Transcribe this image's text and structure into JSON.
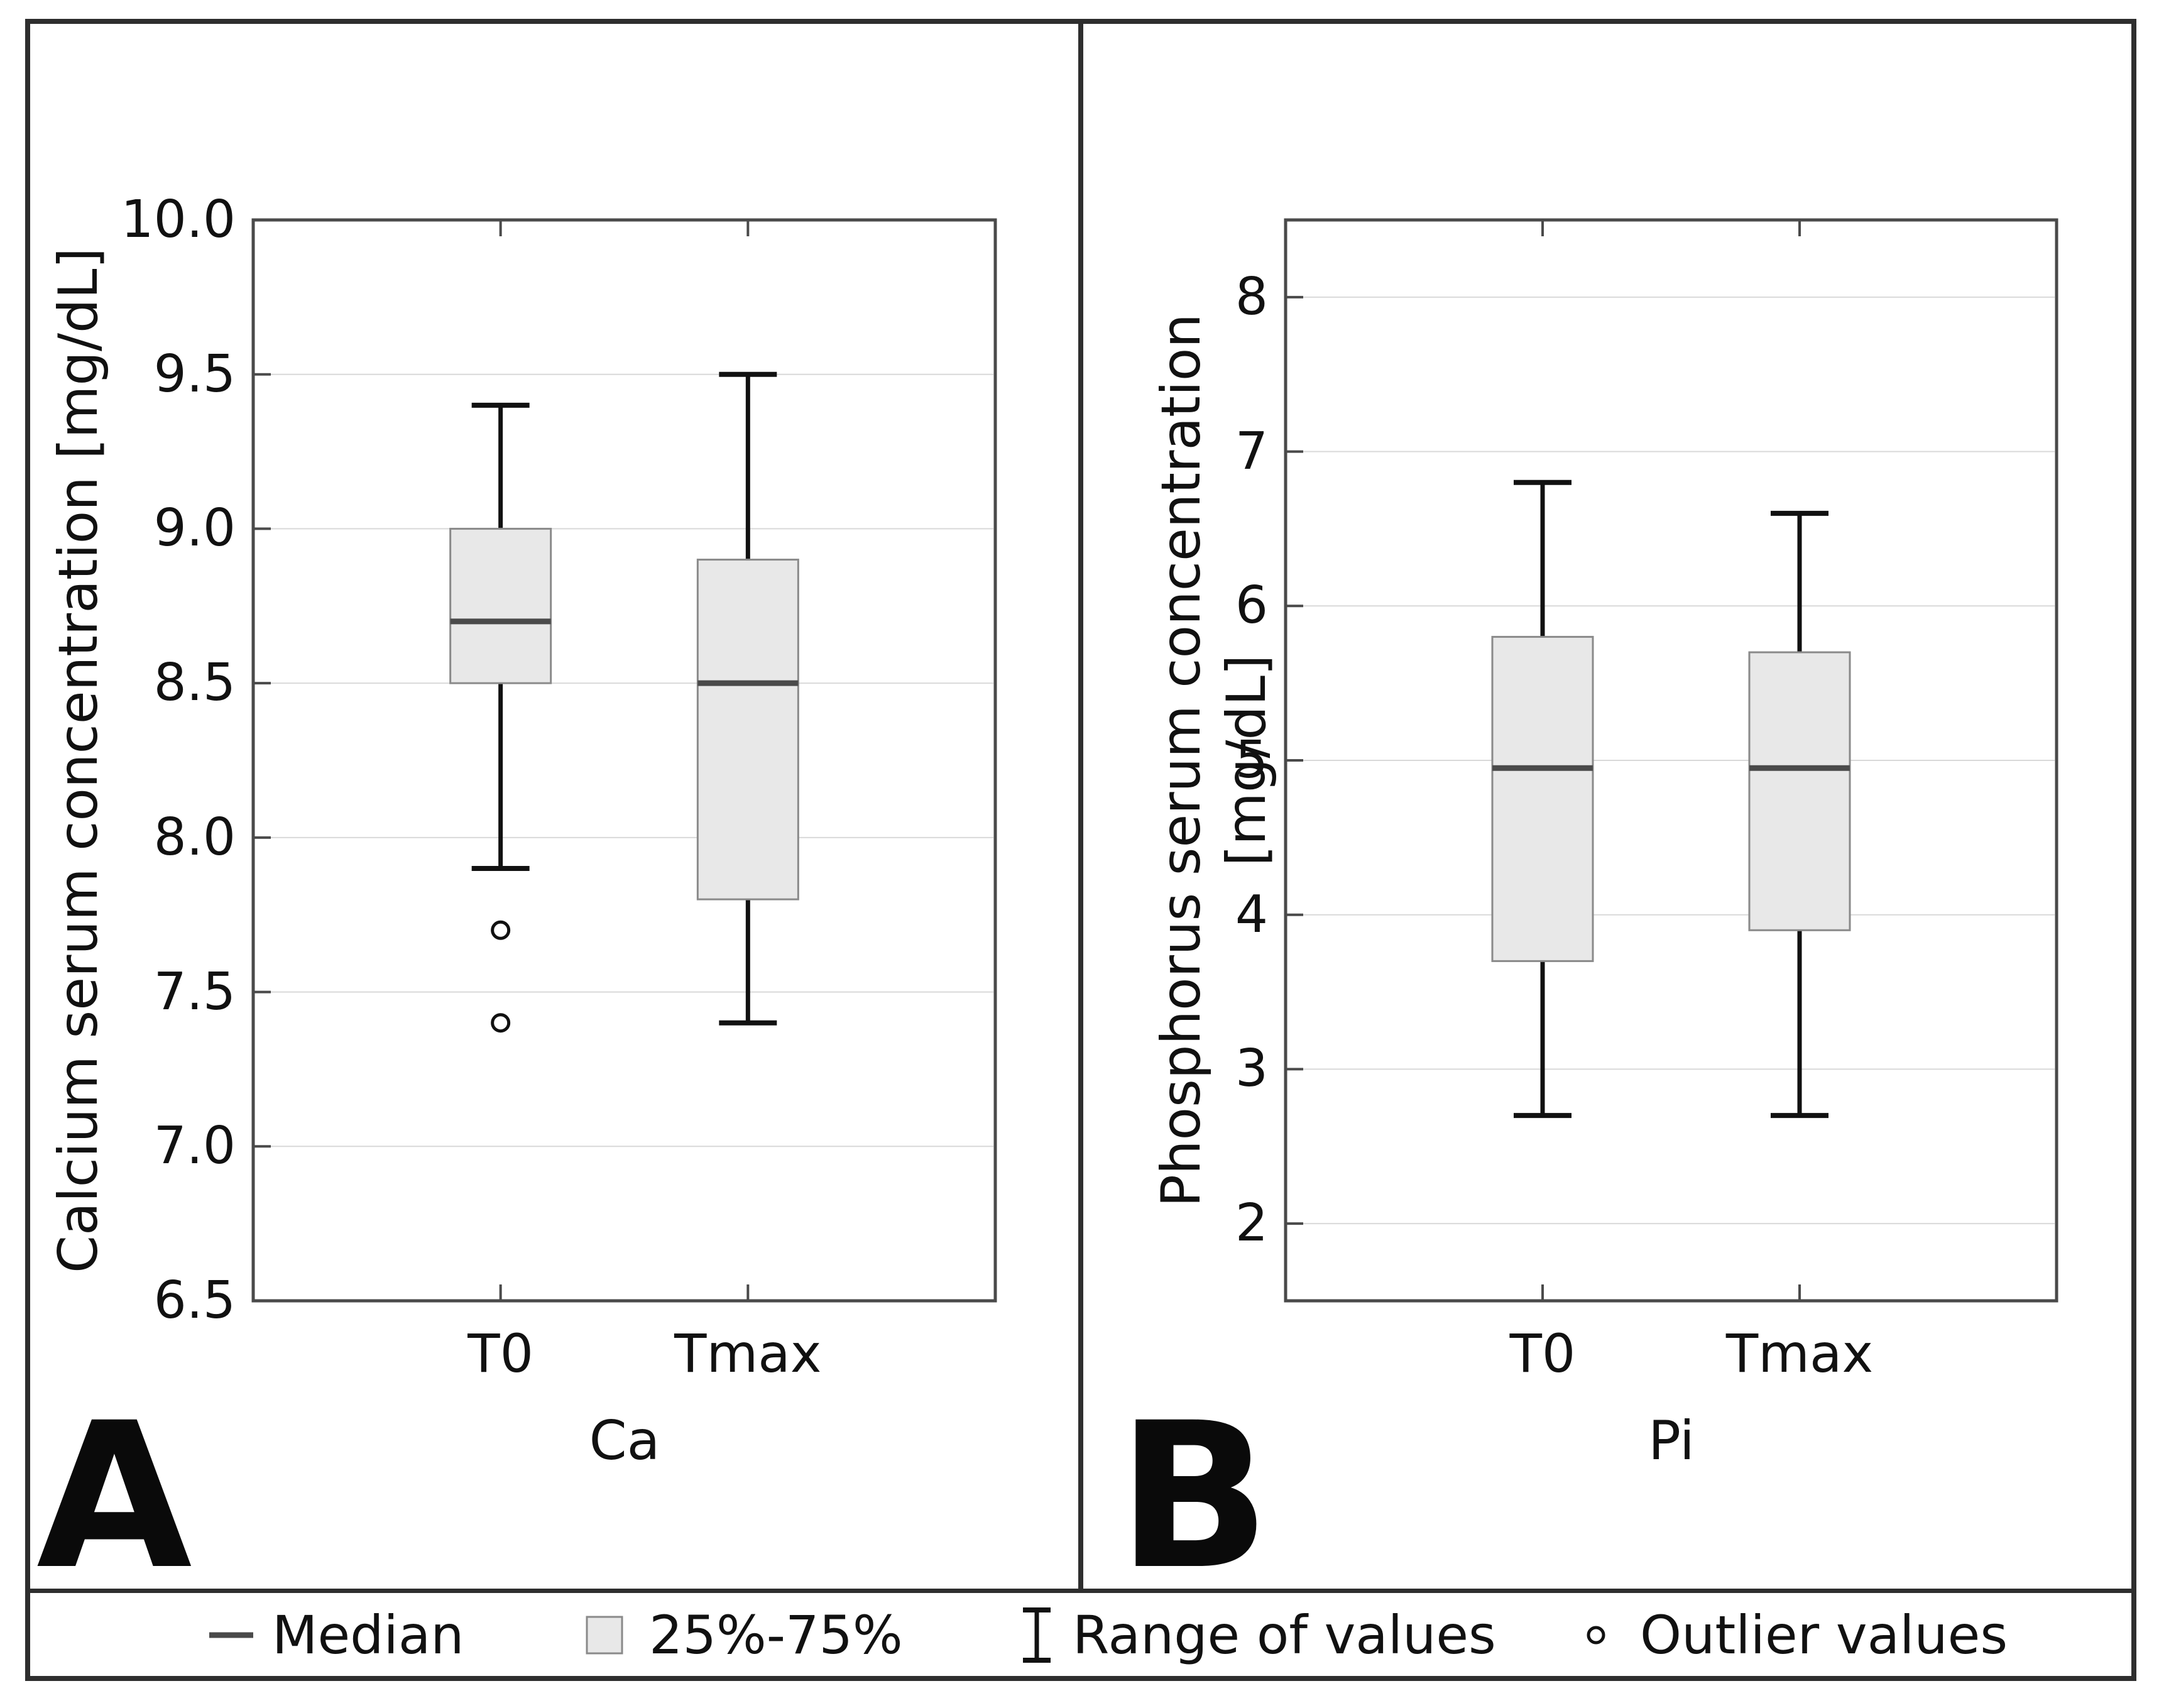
{
  "figure": {
    "colors": {
      "box_fill": "#e8e8e8",
      "box_border": "#8a8a8a",
      "median": "#4a4a4a",
      "whisker": "#111111",
      "grid": "#d9d9d9",
      "frame": "#4a4a4a",
      "tick": "#4a4a4a",
      "text": "#111111",
      "chrome": "#2e2e2e"
    },
    "legend": {
      "items": [
        {
          "icon": "median-line-icon",
          "label": "Median"
        },
        {
          "icon": "box-swatch-icon",
          "label": "25%-75%"
        },
        {
          "icon": "whisker-range-icon",
          "label": "Range of values"
        },
        {
          "icon": "outlier-circle-icon",
          "label": "Outlier values"
        }
      ]
    }
  },
  "chart_data": [
    {
      "type": "boxplot",
      "panel_letter": "A",
      "ylabel": "Calcium serum concentration [mg/dL]",
      "xlabel": "Ca",
      "categories": [
        "T0",
        "Tmax"
      ],
      "ylim": [
        6.5,
        10.0
      ],
      "yticks": [
        6.5,
        7.0,
        7.5,
        8.0,
        8.5,
        9.0,
        9.5,
        10.0
      ],
      "ytick_labels": [
        "6.5",
        "7.0",
        "7.5",
        "8.0",
        "8.5",
        "9.0",
        "9.5",
        "10.0"
      ],
      "grid": "horizontal",
      "legend_position": "bottom",
      "series": [
        {
          "category": "T0",
          "whisker_low": 7.9,
          "q1": 8.5,
          "median": 8.7,
          "q3": 9.0,
          "whisker_high": 9.4,
          "outliers": [
            7.7,
            7.4
          ]
        },
        {
          "category": "Tmax",
          "whisker_low": 7.4,
          "q1": 7.8,
          "median": 8.5,
          "q3": 8.9,
          "whisker_high": 9.5,
          "outliers": []
        }
      ]
    },
    {
      "type": "boxplot",
      "panel_letter": "B",
      "ylabel": "Phosphorus serum concentration [mg/dL]",
      "xlabel": "Pi",
      "categories": [
        "T0",
        "Tmax"
      ],
      "ylim": [
        1.5,
        8.5
      ],
      "yticks": [
        2,
        3,
        4,
        5,
        6,
        7,
        8
      ],
      "ytick_labels": [
        "2",
        "3",
        "4",
        "5",
        "6",
        "7",
        "8"
      ],
      "grid": "horizontal",
      "legend_position": "bottom",
      "series": [
        {
          "category": "T0",
          "whisker_low": 2.7,
          "q1": 3.7,
          "median": 4.95,
          "q3": 5.8,
          "whisker_high": 6.8,
          "outliers": []
        },
        {
          "category": "Tmax",
          "whisker_low": 2.7,
          "q1": 3.9,
          "median": 4.95,
          "q3": 5.7,
          "whisker_high": 6.6,
          "outliers": []
        }
      ]
    }
  ]
}
